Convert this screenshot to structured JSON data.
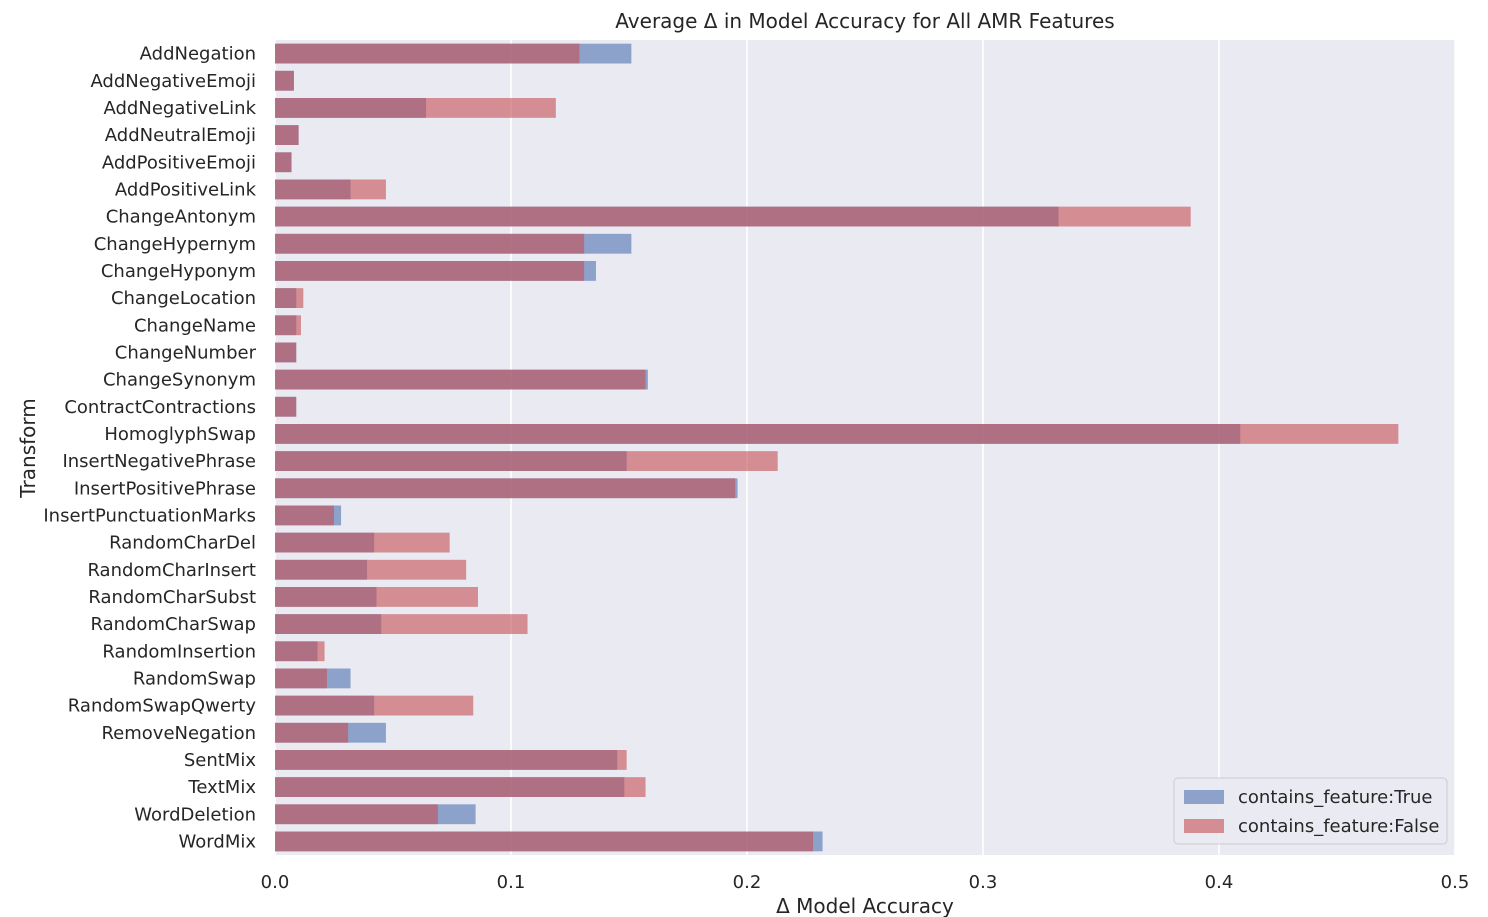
{
  "chart_data": {
    "type": "bar",
    "orientation": "horizontal",
    "title": "Average Δ in Model Accuracy for All AMR Features",
    "xlabel": "Δ Model Accuracy",
    "ylabel": "Transform",
    "xlim": [
      0,
      0.5
    ],
    "xticks": [
      "0.0",
      "0.1",
      "0.2",
      "0.3",
      "0.4",
      "0.5"
    ],
    "grid": true,
    "legend_position": "bottom-right",
    "background": "#eaeaf2",
    "categories": [
      "AddNegation",
      "AddNegativeEmoji",
      "AddNegativeLink",
      "AddNeutralEmoji",
      "AddPositiveEmoji",
      "AddPositiveLink",
      "ChangeAntonym",
      "ChangeHypernym",
      "ChangeHyponym",
      "ChangeLocation",
      "ChangeName",
      "ChangeNumber",
      "ChangeSynonym",
      "ContractContractions",
      "HomoglyphSwap",
      "InsertNegativePhrase",
      "InsertPositivePhrase",
      "InsertPunctuationMarks",
      "RandomCharDel",
      "RandomCharInsert",
      "RandomCharSubst",
      "RandomCharSwap",
      "RandomInsertion",
      "RandomSwap",
      "RandomSwapQwerty",
      "RemoveNegation",
      "SentMix",
      "TextMix",
      "WordDeletion",
      "WordMix"
    ],
    "series": [
      {
        "name": "contains_feature:True",
        "color": "#4c72b0",
        "values": [
          0.151,
          0.008,
          0.064,
          0.01,
          0.007,
          0.032,
          0.332,
          0.151,
          0.136,
          0.009,
          0.009,
          0.009,
          0.158,
          0.009,
          0.409,
          0.149,
          0.196,
          0.028,
          0.042,
          0.039,
          0.043,
          0.045,
          0.018,
          0.032,
          0.042,
          0.047,
          0.145,
          0.148,
          0.085,
          0.232
        ]
      },
      {
        "name": "contains_feature:False",
        "color": "#c44e52",
        "values": [
          0.129,
          0.008,
          0.119,
          0.01,
          0.007,
          0.047,
          0.388,
          0.131,
          0.131,
          0.012,
          0.011,
          0.009,
          0.157,
          0.009,
          0.476,
          0.213,
          0.195,
          0.025,
          0.074,
          0.081,
          0.086,
          0.107,
          0.021,
          0.022,
          0.084,
          0.031,
          0.149,
          0.157,
          0.069,
          0.228
        ]
      }
    ]
  }
}
